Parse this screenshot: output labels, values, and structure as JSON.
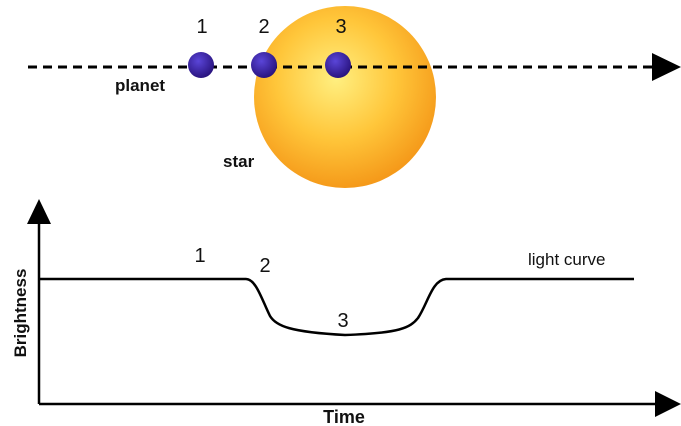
{
  "orbit": {
    "planet_label": "planet",
    "star_label": "star",
    "positions": [
      {
        "label": "1"
      },
      {
        "label": "2"
      },
      {
        "label": "3"
      }
    ]
  },
  "light_curve": {
    "curve_label": "light curve",
    "xlabel": "Time",
    "ylabel": "Brightness",
    "markers": [
      {
        "label": "1"
      },
      {
        "label": "2"
      },
      {
        "label": "3"
      }
    ]
  },
  "colors": {
    "planet": "#3a1fa8",
    "star_center": "#ffe566",
    "star_edge": "#f7a21b",
    "line": "#000000"
  }
}
